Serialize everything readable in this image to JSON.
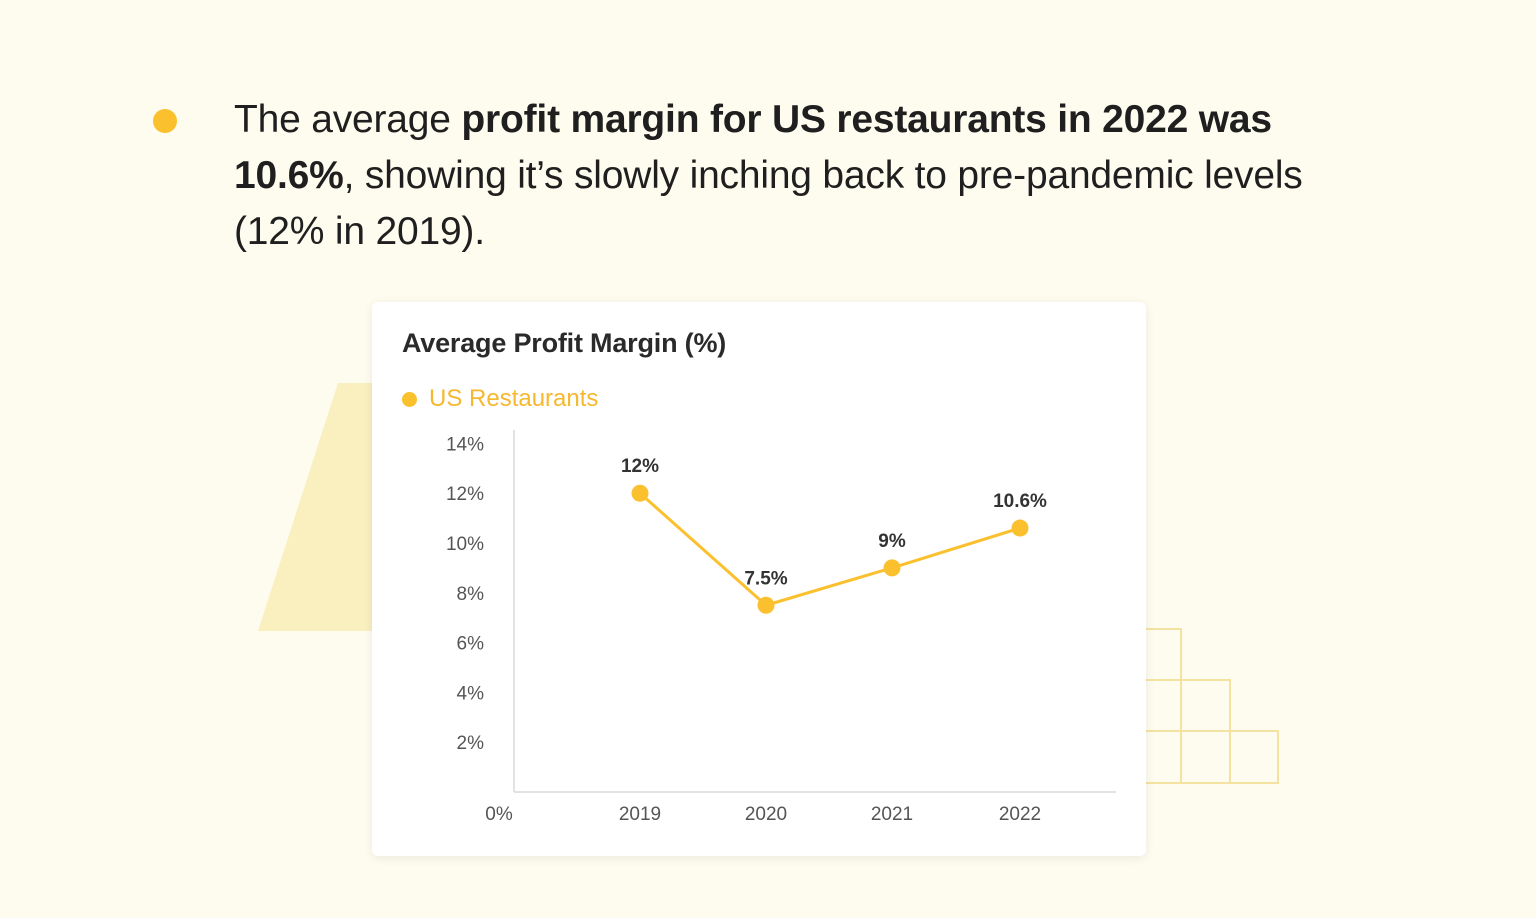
{
  "headline": {
    "part1": "The average ",
    "bold1": "profit margin for US restaurants in 2022 was 10.6%",
    "part2": ", showing it’s slowly inching back to pre-pandemic levels (12% in 2019)."
  },
  "colors": {
    "accent": "#fbc02d",
    "legend_text": "#f5b82e",
    "background": "#fefcef",
    "deco": "#f9efbf"
  },
  "chart_data": {
    "type": "line",
    "title": "Average Profit Margin (%)",
    "categories": [
      "2019",
      "2020",
      "2021",
      "2022"
    ],
    "series": [
      {
        "name": "US Restaurants",
        "values": [
          12,
          7.5,
          9,
          10.6
        ],
        "labels": [
          "12%",
          "7.5%",
          "9%",
          "10.6%"
        ]
      }
    ],
    "y_ticks": [
      "2%",
      "4%",
      "6%",
      "8%",
      "10%",
      "12%",
      "14%"
    ],
    "y_origin_label": "0%",
    "ylim": [
      0,
      14.5
    ],
    "grid": false,
    "legend": "top-left"
  }
}
